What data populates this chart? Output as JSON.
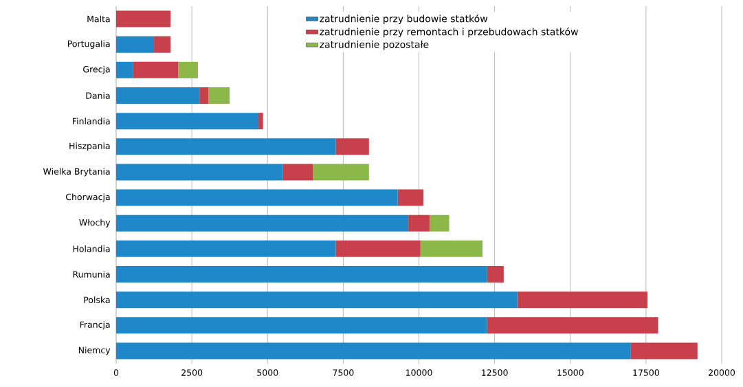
{
  "chart_data": {
    "type": "bar",
    "orientation": "horizontal",
    "stacked": true,
    "categories": [
      "Malta",
      "Portugalia",
      "Grecja",
      "Dania",
      "Finlandia",
      "Hiszpania",
      "Wielka Brytania",
      "Chorwacja",
      "Włochy",
      "Holandia",
      "Rumunia",
      "Polska",
      "Francja",
      "Niemcy"
    ],
    "series": [
      {
        "name": "zatrudnienie przy budowie statków",
        "color": "#1f88c8",
        "values": [
          0,
          1250,
          550,
          2750,
          4700,
          7250,
          5500,
          9300,
          9650,
          7250,
          12250,
          13250,
          12250,
          17000
        ]
      },
      {
        "name": "zatrudnienie przy remontach i przebudowach statków",
        "color": "#c8404c",
        "values": [
          1800,
          550,
          1500,
          300,
          150,
          1100,
          1000,
          850,
          700,
          2800,
          550,
          4300,
          5650,
          2200
        ]
      },
      {
        "name": "zatrudnienie pozostałe",
        "color": "#8cb84a",
        "values": [
          0,
          0,
          650,
          700,
          0,
          0,
          1850,
          0,
          650,
          2050,
          0,
          0,
          0,
          0
        ]
      }
    ],
    "xlim": [
      0,
      20000
    ],
    "xticks": [
      0,
      2500,
      5000,
      7500,
      10000,
      12500,
      15000,
      17500,
      20000
    ],
    "grid": "x",
    "legend": "top"
  }
}
